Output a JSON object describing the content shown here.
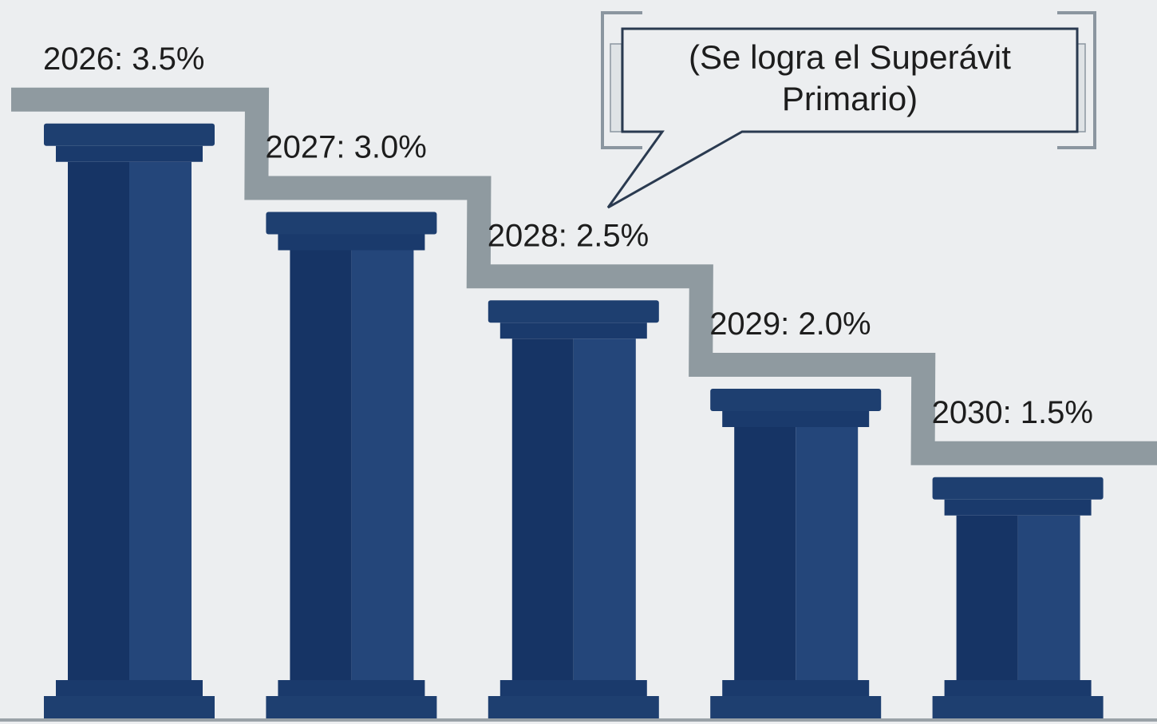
{
  "chart_data": {
    "type": "bar",
    "annotation": "(Se logra el Superávit Primario)",
    "values": [
      3.5,
      3.0,
      2.5,
      2.0,
      1.5
    ],
    "value_labels": [
      "2026: 3.5%",
      "2027: 3.0%",
      "2028: 2.5%",
      "2029: 2.0%",
      "2030: 1.5%"
    ],
    "color": "#1e3f70",
    "step_color": "#8f9aa0"
  }
}
